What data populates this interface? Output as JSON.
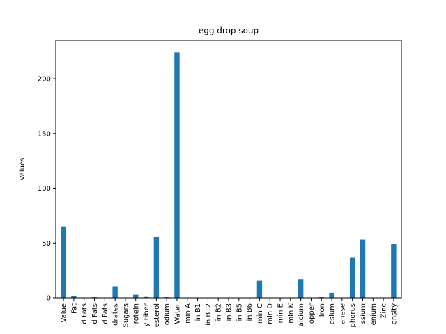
{
  "chart_data": {
    "type": "bar",
    "title": "egg drop soup",
    "xlabel": "",
    "ylabel": "Values",
    "ylim": [
      0,
      235
    ],
    "yticks": [
      0,
      50,
      100,
      150,
      200
    ],
    "grid": false,
    "bar_color": "#1f77b4",
    "categories": [
      "Value",
      "Fat",
      "d Fats",
      "d Fats",
      "d Fats",
      "drates",
      "Sugars",
      "rotein",
      "y Fiber",
      "esterol",
      "odium",
      "Water",
      "min A",
      "in B1",
      "in B12",
      "in B2",
      "in B3",
      "in B5",
      "in B6",
      "min C",
      "min D",
      "min E",
      "min K",
      "alcium",
      "opper",
      "Iron",
      "esium",
      "anese",
      "phorus",
      "ssium",
      "enium",
      "Zinc",
      "ensity"
    ],
    "values": [
      65,
      1.5,
      0.3,
      0.6,
      0.2,
      10.5,
      0.3,
      2.8,
      0.8,
      55.5,
      0.6,
      224,
      0,
      0,
      0,
      0,
      0,
      0,
      0,
      15.5,
      0,
      0,
      0,
      17,
      0.2,
      0.6,
      4.5,
      0,
      36.5,
      53,
      0,
      0,
      49
    ]
  }
}
